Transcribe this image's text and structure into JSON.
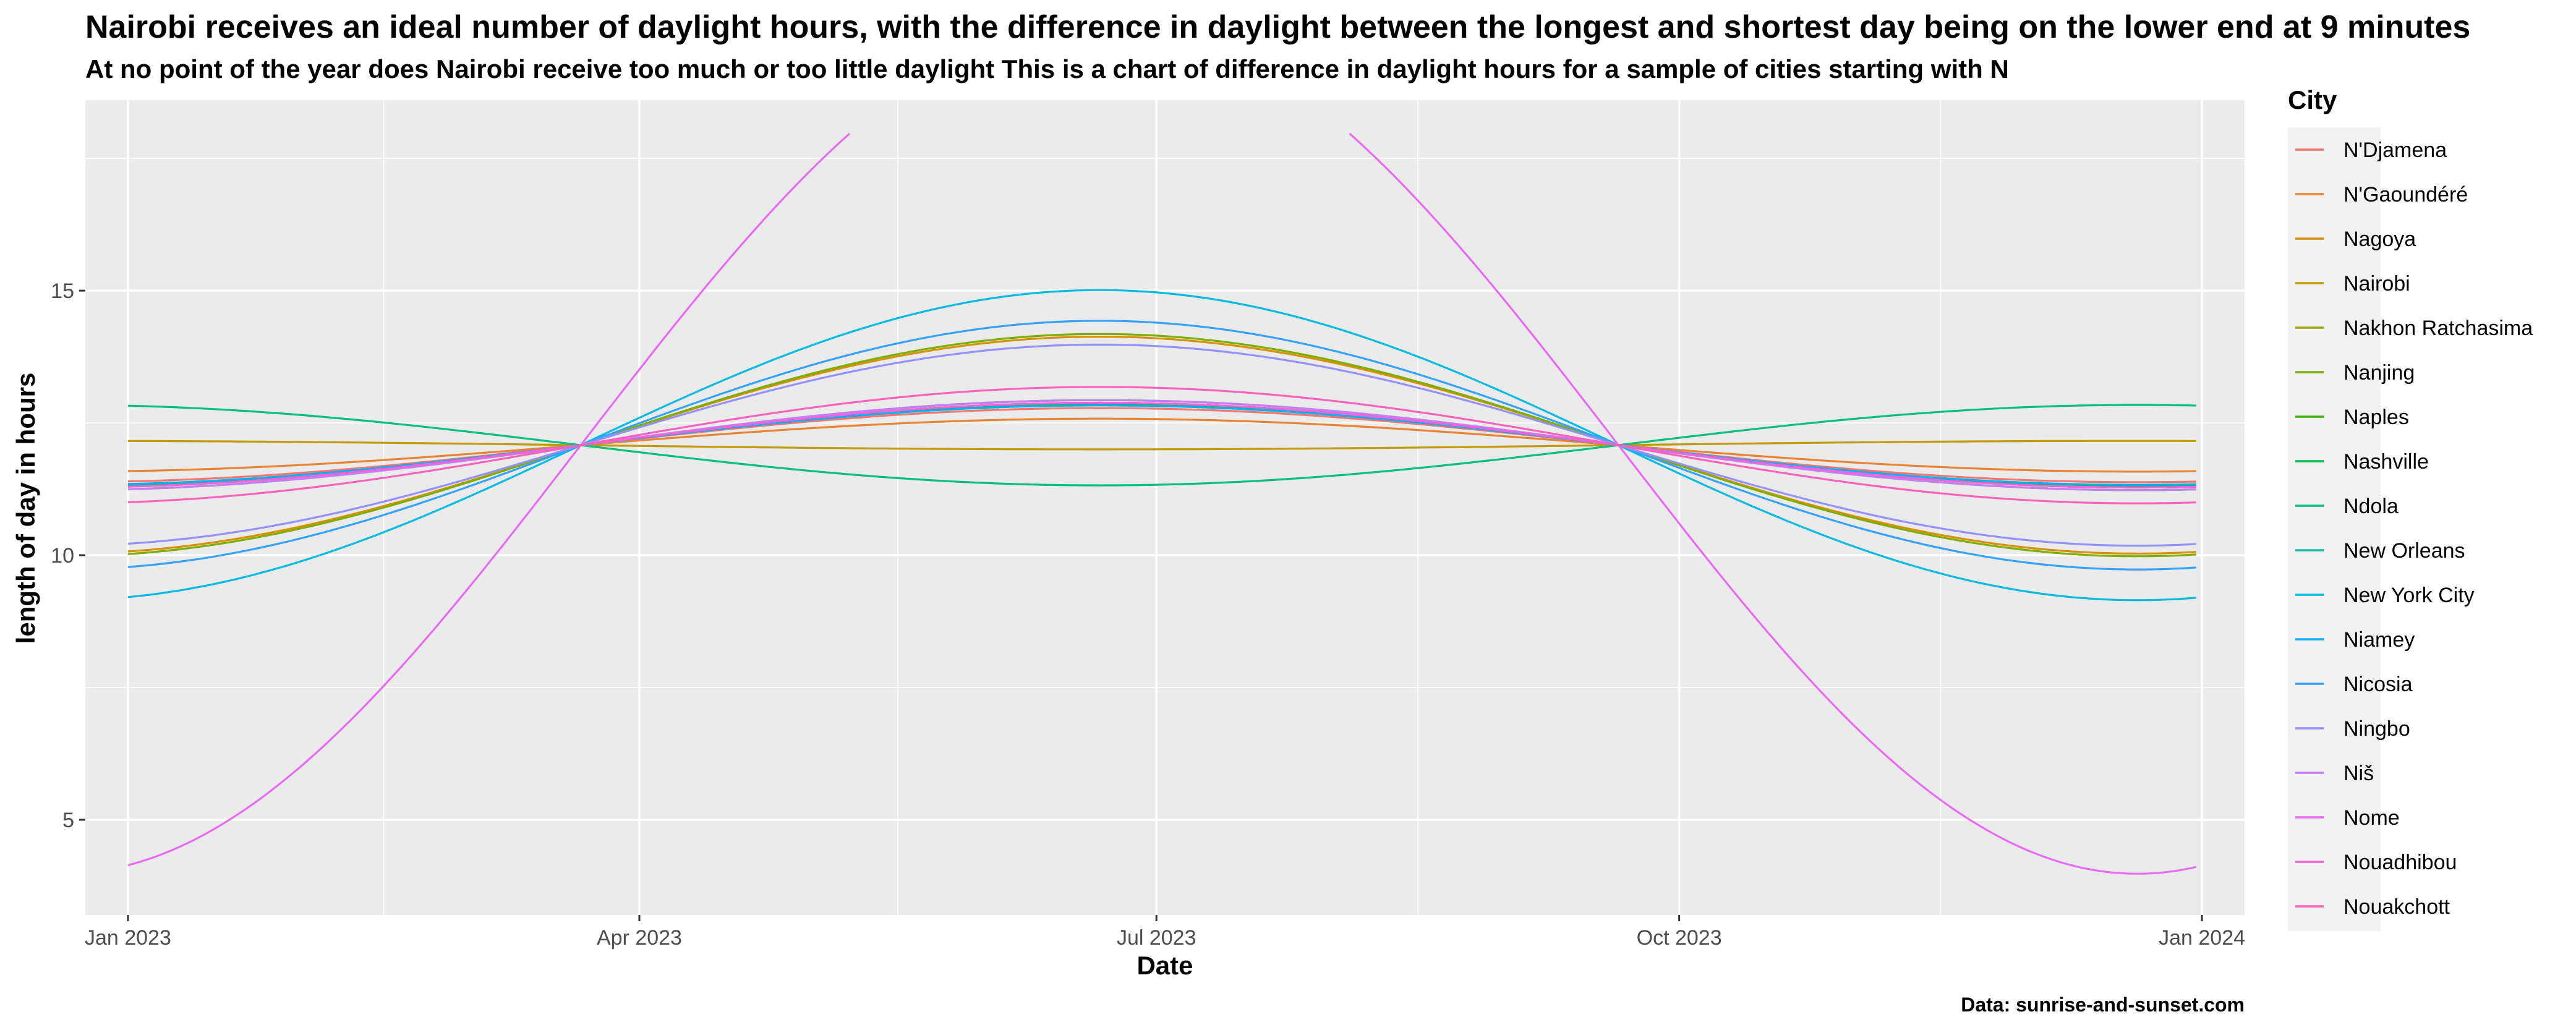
{
  "title": "Nairobi receives an ideal number of daylight hours, with the difference in daylight between the longest and shortest day being on the lower end at 9 minutes",
  "subtitle": "At no point of the year does Nairobi receive too much or too little daylight This is a chart of difference in daylight hours for a sample of cities starting with N",
  "caption": "Data: sunrise-and-sunset.com",
  "colors": {
    "panel": "#ebebeb",
    "grid_major": "#ffffff",
    "legend_bg": "#f2f2f2"
  },
  "chart_data": {
    "type": "line",
    "xlabel": "Date",
    "ylabel": "length of day in hours",
    "xlim": [
      "2023-01-01",
      "2024-01-01"
    ],
    "ylim": [
      3.2,
      18.6
    ],
    "x_ticks": [
      {
        "date": "2023-01-01",
        "label": "Jan 2023"
      },
      {
        "date": "2023-04-01",
        "label": "Apr 2023"
      },
      {
        "date": "2023-07-01",
        "label": "Jul 2023"
      },
      {
        "date": "2023-10-01",
        "label": "Oct 2023"
      },
      {
        "date": "2024-01-01",
        "label": "Jan 2024"
      }
    ],
    "y_ticks": [
      5,
      10,
      15
    ],
    "grid": true,
    "legend_title": "City",
    "legend_position": "right",
    "series_model": "Each series follows the seasonal shape length = 12.08 + a*cos(2*pi*(date - Jun 21)/365.25); a is the half-range in hours, clipped to the plotted range",
    "series": [
      {
        "name": "N'Djamena",
        "color": "#F8766D",
        "a": 0.7
      },
      {
        "name": "N'Gaoundéré",
        "color": "#EA8331",
        "a": 0.5
      },
      {
        "name": "Nagoya",
        "color": "#D89000",
        "a": 2.05
      },
      {
        "name": "Nairobi",
        "color": "#C09B00",
        "a": -0.08
      },
      {
        "name": "Nakhon Ratchasima",
        "color": "#A3A500",
        "a": 0.8
      },
      {
        "name": "Nanjing",
        "color": "#7CAE00",
        "a": 2.1
      },
      {
        "name": "Naples",
        "color": "#39B600",
        "a": 0.85
      },
      {
        "name": "Nashville",
        "color": "#00BB4E",
        "a": 0.78
      },
      {
        "name": "Ndola",
        "color": "#00BF7D",
        "a": -0.76
      },
      {
        "name": "New Orleans",
        "color": "#00C1A3",
        "a": 0.8
      },
      {
        "name": "New York City",
        "color": "#00BAE0",
        "a": 2.93
      },
      {
        "name": "Niamey",
        "color": "#00B0F6",
        "a": 0.75
      },
      {
        "name": "Nicosia",
        "color": "#35A2FF",
        "a": 2.35
      },
      {
        "name": "Ningbo",
        "color": "#9590FF",
        "a": 1.9
      },
      {
        "name": "Niš",
        "color": "#C77CFF",
        "a": 0.85
      },
      {
        "name": "Nome",
        "color": "#E76BF3",
        "a": 8.1
      },
      {
        "name": "Nouadhibou",
        "color": "#FA62DB",
        "a": 0.8
      },
      {
        "name": "Nouakchott",
        "color": "#FF62BC",
        "a": 1.1
      }
    ]
  }
}
